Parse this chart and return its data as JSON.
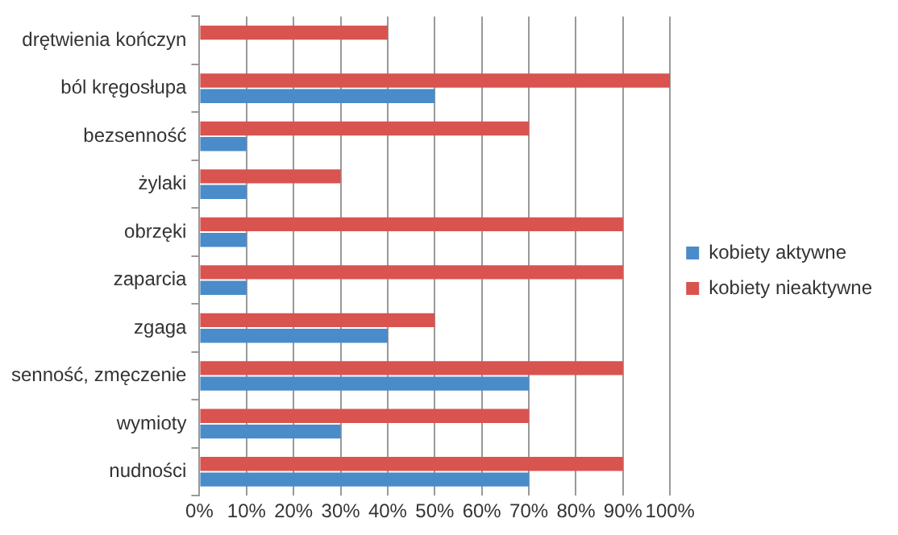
{
  "chart_data": {
    "type": "bar",
    "orientation": "horizontal",
    "categories": [
      "drętwienia kończyn",
      "ból kręgosłupa",
      "bezsenność",
      "żylaki",
      "obrzęki",
      "zaparcia",
      "zgaga",
      "senność, zmęczenie",
      "wymioty",
      "nudności"
    ],
    "series": [
      {
        "name": "kobiety aktywne",
        "color": "#4a8bc9",
        "values": [
          null,
          50,
          10,
          10,
          10,
          10,
          40,
          70,
          30,
          70
        ]
      },
      {
        "name": "kobiety nieaktywne",
        "color": "#d9534f",
        "values": [
          40,
          100,
          70,
          30,
          90,
          90,
          50,
          90,
          70,
          90
        ]
      }
    ],
    "xlim": [
      0,
      100
    ],
    "xticks": [
      {
        "value": 0,
        "label": "0%"
      },
      {
        "value": 10,
        "label": "10%"
      },
      {
        "value": 20,
        "label": "20%"
      },
      {
        "value": 30,
        "label": "30%"
      },
      {
        "value": 40,
        "label": "40%"
      },
      {
        "value": 50,
        "label": "50%"
      },
      {
        "value": 60,
        "label": "60%"
      },
      {
        "value": 70,
        "label": "70%"
      },
      {
        "value": 80,
        "label": "80%"
      },
      {
        "value": 90,
        "label": "90%"
      },
      {
        "value": 100,
        "label": "100%"
      }
    ],
    "grid": "x",
    "legend": "right"
  }
}
